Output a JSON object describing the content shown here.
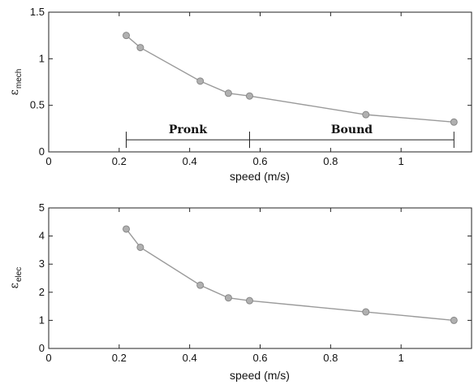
{
  "chart_data": [
    {
      "type": "line",
      "x": [
        0.22,
        0.26,
        0.43,
        0.51,
        0.57,
        0.9,
        1.15
      ],
      "series": [
        {
          "values": [
            1.25,
            1.12,
            0.76,
            0.63,
            0.6,
            0.4,
            0.32
          ]
        }
      ],
      "xlabel": "speed (m/s)",
      "ylabel_main": "ε",
      "ylabel_sub": "mech",
      "xlim": [
        0,
        1.2
      ],
      "ylim": [
        0,
        1.5
      ],
      "xticks": [
        "0",
        "0.2",
        "0.4",
        "0.6",
        "0.8",
        "1"
      ],
      "yticks": [
        "0",
        "0.5",
        "1",
        "1.5"
      ],
      "grid": false,
      "marker": "circle",
      "line_color": "#9a9a9a",
      "marker_color": "#b0b0b0",
      "annotations": [
        {
          "label": "Pronk",
          "x_start": 0.22,
          "x_end": 0.57,
          "y": 0.13
        },
        {
          "label": "Bound",
          "x_start": 0.57,
          "x_end": 1.15,
          "y": 0.13
        }
      ]
    },
    {
      "type": "line",
      "x": [
        0.22,
        0.26,
        0.43,
        0.51,
        0.57,
        0.9,
        1.15
      ],
      "series": [
        {
          "values": [
            4.25,
            3.6,
            2.25,
            1.8,
            1.7,
            1.3,
            1.0
          ]
        }
      ],
      "xlabel": "speed (m/s)",
      "ylabel_main": "ε",
      "ylabel_sub": "elec",
      "xlim": [
        0,
        1.2
      ],
      "ylim": [
        0,
        5
      ],
      "xticks": [
        "0",
        "0.2",
        "0.4",
        "0.6",
        "0.8",
        "1"
      ],
      "yticks": [
        "0",
        "1",
        "2",
        "3",
        "4",
        "5"
      ],
      "grid": false,
      "marker": "circle",
      "line_color": "#9a9a9a",
      "marker_color": "#b0b0b0",
      "annotations": []
    }
  ]
}
